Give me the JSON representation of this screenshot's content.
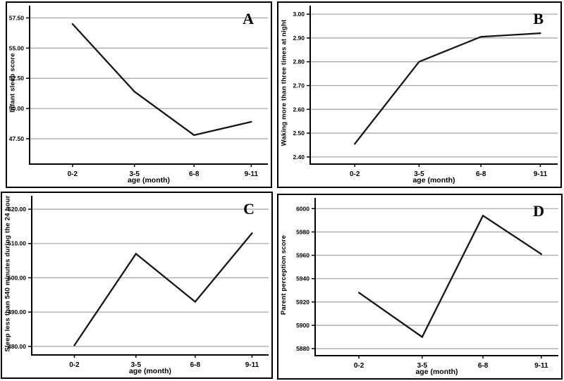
{
  "figure": {
    "background": "#ffffff",
    "border_color": "#000000",
    "grid_color": "#a8a8a8",
    "axis_color": "#000000",
    "line_color": "#161616"
  },
  "chart_data": [
    {
      "letter": "A",
      "type": "line",
      "title": "",
      "ylabel": "Infant sleep score",
      "xlabel": "age (month)",
      "categories": [
        "0-2",
        "3-5",
        "6-8",
        "9-11"
      ],
      "values": [
        57.0,
        51.4,
        47.8,
        48.9
      ],
      "ytick_labels": [
        "47.50",
        "50.00",
        "52.50",
        "55.00",
        "57.50"
      ],
      "ytick_values": [
        47.5,
        50.0,
        52.5,
        55.0,
        57.5
      ],
      "ylim": [
        45.4,
        58.4
      ],
      "grid": true,
      "legend_position": "none"
    },
    {
      "letter": "B",
      "type": "line",
      "title": "",
      "ylabel": "Waking more than three times at night",
      "xlabel": "age (month)",
      "categories": [
        "0-2",
        "3-5",
        "6-8",
        "9-11"
      ],
      "values": [
        2.455,
        2.8,
        2.905,
        2.92
      ],
      "ytick_labels": [
        "2.40",
        "2.50",
        "2.60",
        "2.70",
        "2.80",
        "2.90",
        "3.00"
      ],
      "ytick_values": [
        2.4,
        2.5,
        2.6,
        2.7,
        2.8,
        2.9,
        3.0
      ],
      "ylim": [
        2.37,
        3.03
      ],
      "grid": true,
      "legend_position": "none"
    },
    {
      "letter": "C",
      "type": "line",
      "title": "",
      "ylabel": "Sleep less than 540 minutes during the 24 hour",
      "xlabel": "age (month)",
      "categories": [
        "0-2",
        "3-5",
        "6-8",
        "9-11"
      ],
      "values": [
        480.3,
        507.0,
        493.0,
        513.0
      ],
      "ytick_labels": [
        "480.00",
        "490.00",
        "500.00",
        "510.00",
        "520.00"
      ],
      "ytick_values": [
        480.0,
        490.0,
        500.0,
        510.0,
        520.0
      ],
      "ylim": [
        477.5,
        523.5
      ],
      "grid": true,
      "legend_position": "none"
    },
    {
      "letter": "D",
      "type": "line",
      "title": "",
      "ylabel": "Parent perception score",
      "xlabel": "age (month)",
      "categories": [
        "0-2",
        "3-5",
        "6-8",
        "9-11"
      ],
      "values": [
        5928,
        5890,
        5994,
        5961
      ],
      "ytick_labels": [
        "5880",
        "5900",
        "5920",
        "5940",
        "5960",
        "5980",
        "6000"
      ],
      "ytick_values": [
        5880,
        5900,
        5920,
        5940,
        5960,
        5980,
        6000
      ],
      "ylim": [
        5874,
        6008
      ],
      "grid": true,
      "legend_position": "none"
    }
  ]
}
